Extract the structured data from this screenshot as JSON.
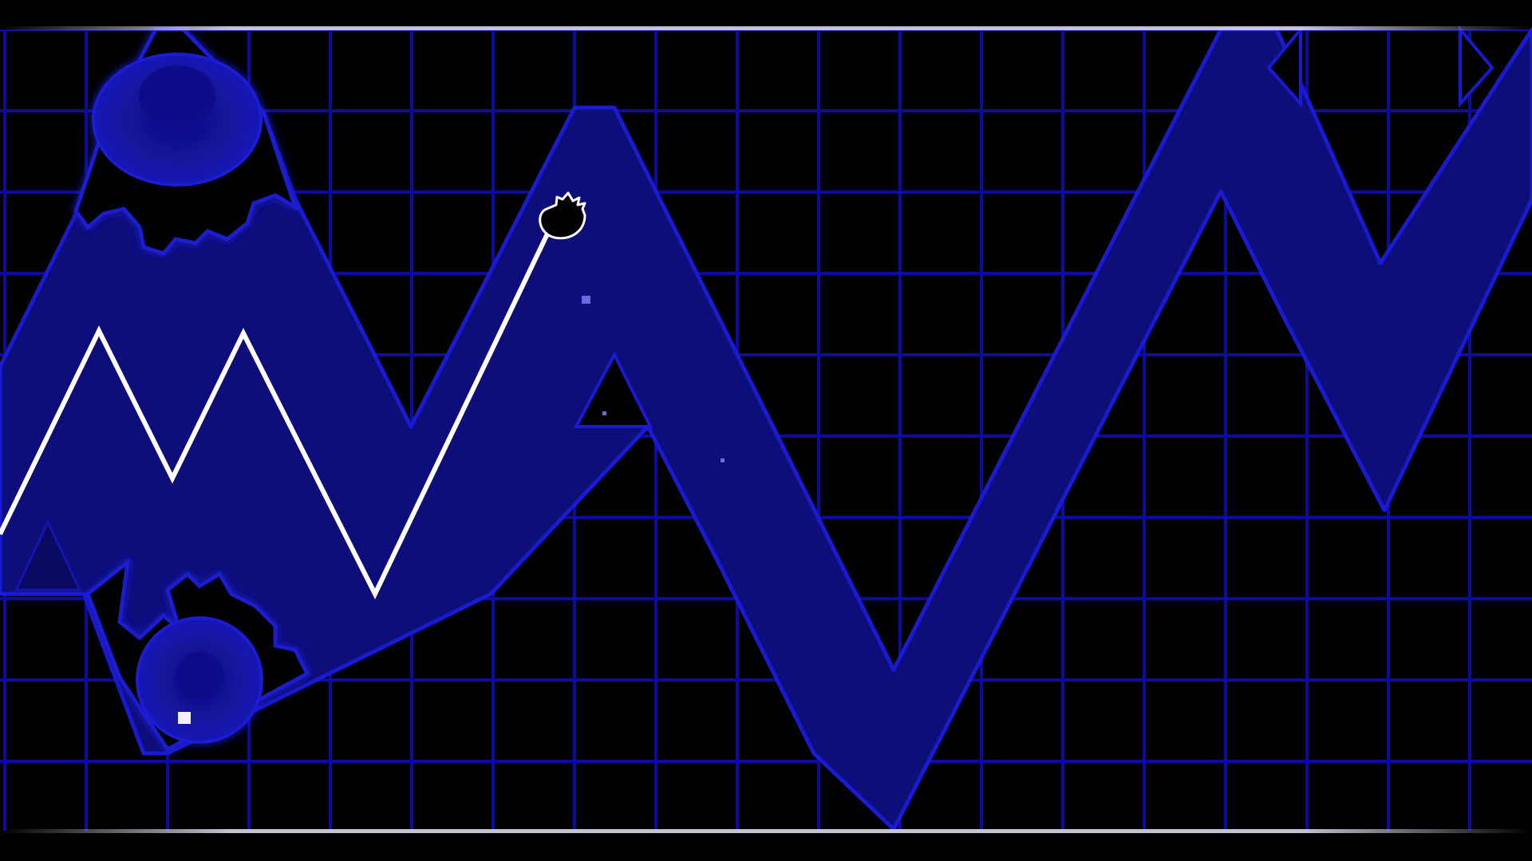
{
  "game": {
    "mode": "wave",
    "theme": {
      "background": "#000000",
      "grid_line": "#0c0c9e",
      "corridor_fill": "#0e0e7a",
      "corridor_edge": "#1a1ad0",
      "trail": "#ffffff",
      "border_line": "#d8d8e8",
      "particle": "#6a6ae0"
    },
    "hazards": [
      "gear-saw-top",
      "gear-saw-bottom"
    ],
    "player": {
      "icon": "wave-player-icon",
      "state": "ascending"
    },
    "hud": {}
  }
}
